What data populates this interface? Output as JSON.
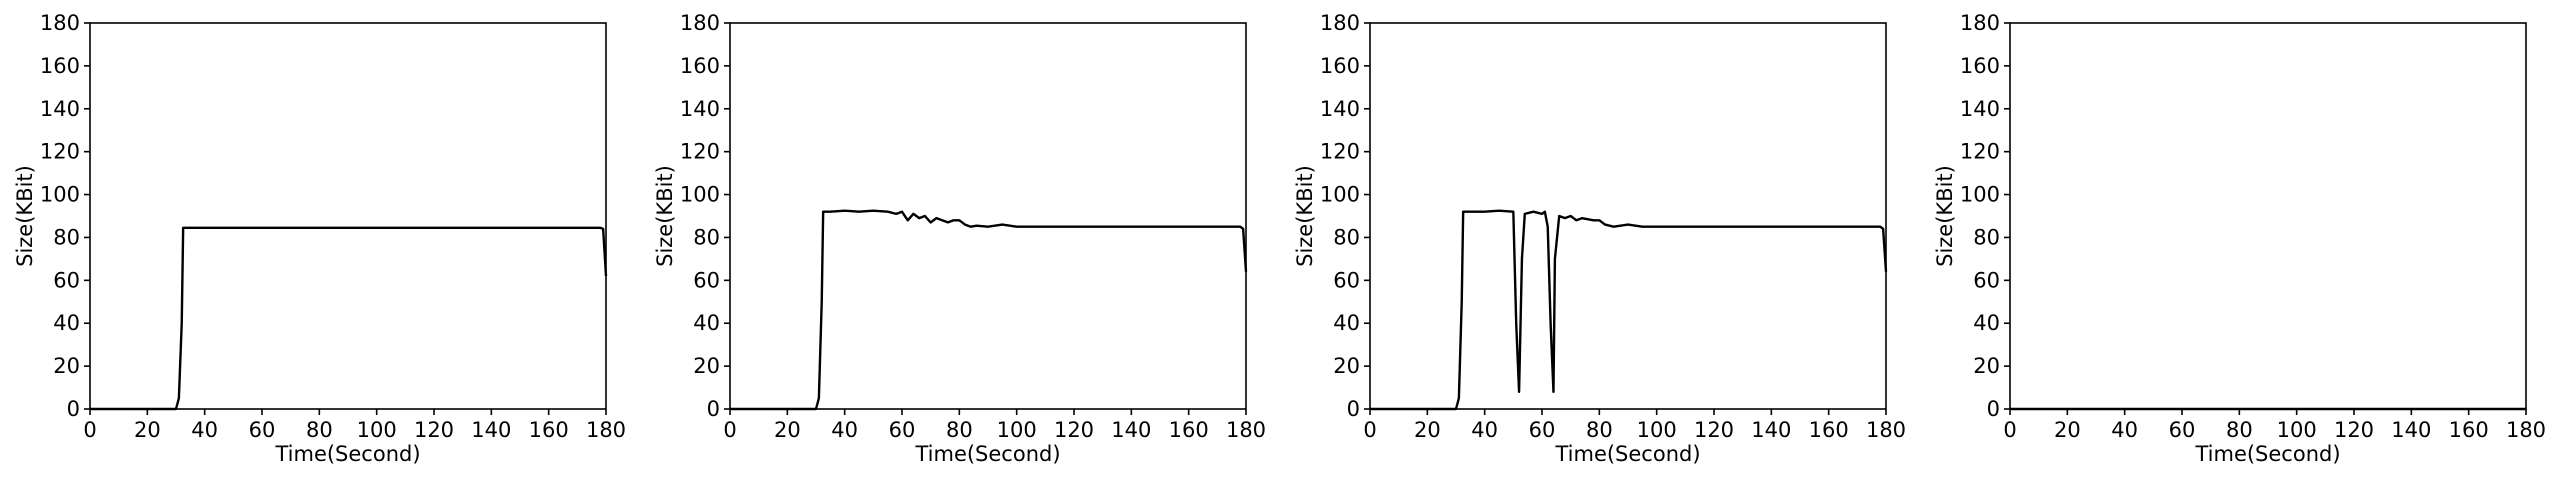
{
  "chart_data": [
    {
      "type": "line",
      "xlabel": "Time(Second)",
      "ylabel": "Size(KBit)",
      "xlim": [
        0,
        180
      ],
      "ylim": [
        0,
        180
      ],
      "xticks": [
        "0",
        "20",
        "40",
        "60",
        "80",
        "100",
        "120",
        "140",
        "160",
        "180"
      ],
      "yticks": [
        "0",
        "20",
        "40",
        "60",
        "80",
        "100",
        "120",
        "140",
        "160",
        "180"
      ],
      "grid": false,
      "series": [
        {
          "x": [
            0,
            30,
            31,
            32,
            32.5,
            60,
            100,
            140,
            178,
            179,
            180
          ],
          "y": [
            0,
            0,
            5,
            40,
            84.5,
            84.5,
            84.5,
            84.5,
            84.5,
            84,
            62
          ]
        }
      ]
    },
    {
      "type": "line",
      "xlabel": "Time(Second)",
      "ylabel": "Size(KBit)",
      "xlim": [
        0,
        180
      ],
      "ylim": [
        0,
        180
      ],
      "xticks": [
        "0",
        "20",
        "40",
        "60",
        "80",
        "100",
        "120",
        "140",
        "160",
        "180"
      ],
      "yticks": [
        "0",
        "20",
        "40",
        "60",
        "80",
        "100",
        "120",
        "140",
        "160",
        "180"
      ],
      "grid": false,
      "series": [
        {
          "x": [
            0,
            30,
            31,
            32,
            32.5,
            35,
            40,
            45,
            50,
            55,
            58,
            60,
            62,
            64,
            66,
            68,
            70,
            72,
            74,
            76,
            78,
            80,
            82,
            84,
            86,
            90,
            95,
            100,
            110,
            120,
            130,
            140,
            150,
            160,
            170,
            178,
            179,
            180
          ],
          "y": [
            0,
            0,
            5,
            50,
            92,
            92,
            92.5,
            92,
            92.5,
            92,
            91,
            92,
            88,
            91,
            89,
            90,
            87,
            89,
            88,
            87,
            88,
            88,
            86,
            85,
            85.5,
            85,
            86,
            85,
            85,
            85,
            85,
            85,
            85,
            85,
            85,
            85,
            84,
            64
          ]
        }
      ]
    },
    {
      "type": "line",
      "xlabel": "Time(Second)",
      "ylabel": "Size(KBit)",
      "xlim": [
        0,
        180
      ],
      "ylim": [
        0,
        180
      ],
      "xticks": [
        "0",
        "20",
        "40",
        "60",
        "80",
        "100",
        "120",
        "140",
        "160",
        "180"
      ],
      "yticks": [
        "0",
        "20",
        "40",
        "60",
        "80",
        "100",
        "120",
        "140",
        "160",
        "180"
      ],
      "grid": false,
      "series": [
        {
          "x": [
            0,
            30,
            31,
            32,
            32.5,
            40,
            45,
            50,
            51,
            52,
            53,
            54,
            57,
            60,
            61,
            62,
            63,
            64,
            64.5,
            66,
            68,
            70,
            72,
            74,
            78,
            80,
            82,
            85,
            90,
            95,
            100,
            110,
            120,
            130,
            140,
            150,
            160,
            170,
            178,
            179,
            180
          ],
          "y": [
            0,
            0,
            5,
            50,
            92,
            92,
            92.5,
            92,
            40,
            8,
            70,
            91,
            92,
            91,
            92,
            85,
            40,
            8,
            70,
            90,
            89,
            90,
            88,
            89,
            88,
            88,
            86,
            85,
            86,
            85,
            85,
            85,
            85,
            85,
            85,
            85,
            85,
            85,
            85,
            84,
            64
          ]
        }
      ]
    },
    {
      "type": "line",
      "xlabel": "Time(Second)",
      "ylabel": "Size(KBit)",
      "xlim": [
        0,
        180
      ],
      "ylim": [
        0,
        180
      ],
      "xticks": [
        "0",
        "20",
        "40",
        "60",
        "80",
        "100",
        "120",
        "140",
        "160",
        "180"
      ],
      "yticks": [
        "0",
        "20",
        "40",
        "60",
        "80",
        "100",
        "120",
        "140",
        "160",
        "180"
      ],
      "grid": false,
      "series": [
        {
          "x": [
            0,
            60,
            120,
            180
          ],
          "y": [
            0,
            0,
            0,
            0
          ]
        }
      ]
    }
  ]
}
